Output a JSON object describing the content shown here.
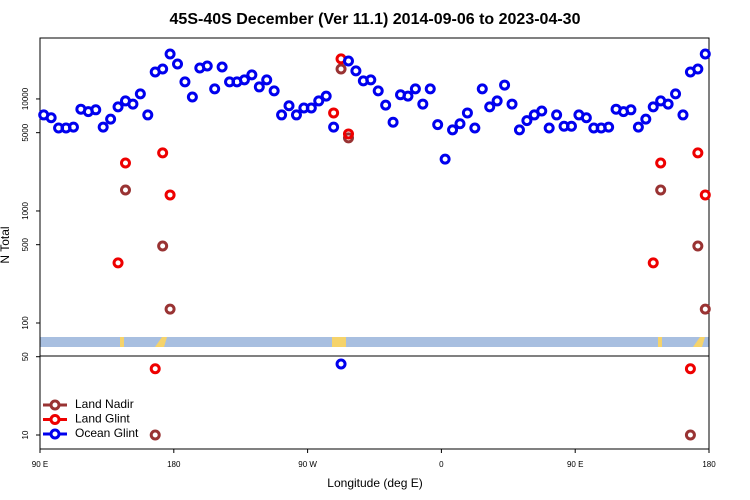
{
  "chart_data": {
    "type": "scatter",
    "title": "45S-40S December (Ver 11.1)   2014-09-06 to 2023-04-30",
    "xlabel": "Longitude (deg E)",
    "ylabel": "N Total",
    "log_y": true,
    "grid": false,
    "legend": "bottom-left",
    "xlim": [
      90,
      540
    ],
    "xticks": [
      {
        "value": 90,
        "label": "90 E"
      },
      180,
      {
        "value": 270,
        "label": "90 W"
      },
      {
        "value": 360,
        "label": "0"
      },
      {
        "value": 450,
        "label": "90 E"
      },
      {
        "value": 540,
        "label": "180"
      }
    ],
    "ylim": [
      7.5,
      35000
    ],
    "yticks": [
      10,
      50,
      100,
      500,
      1000,
      5000,
      10000
    ],
    "series": [
      {
        "name": "Land Nadir",
        "color": "#993333",
        "x": [
          147.5,
          167.5,
          172.5,
          177.5,
          292.5,
          297.5,
          507.5,
          527.5,
          532.5,
          537.5
        ],
        "values": [
          1540,
          10,
          487,
          133,
          18500,
          4490,
          1540,
          10,
          487,
          133
        ]
      },
      {
        "name": "Land Glint",
        "color": "#ee0000",
        "x": [
          142.5,
          147.5,
          167.5,
          172.5,
          177.5,
          287.5,
          292.5,
          297.5,
          502.5,
          507.5,
          527.5,
          532.5,
          537.5
        ],
        "values": [
          344,
          2680,
          39,
          3300,
          1390,
          7500,
          22800,
          4870,
          344,
          2680,
          39,
          3300,
          1390
        ]
      },
      {
        "name": "Ocean Glint",
        "color": "#0000ee",
        "x": [
          92.5,
          97.5,
          102.5,
          107.5,
          112.5,
          117.5,
          122.5,
          127.5,
          132.5,
          137.5,
          142.5,
          147.5,
          152.5,
          157.5,
          162.5,
          167.5,
          172.5,
          177.5,
          182.5,
          187.5,
          192.5,
          197.5,
          202.5,
          207.5,
          212.5,
          217.5,
          222.5,
          227.5,
          232.5,
          237.5,
          242.5,
          247.5,
          252.5,
          257.5,
          262.5,
          267.5,
          272.5,
          277.5,
          282.5,
          287.5,
          292.5,
          297.5,
          302.5,
          307.5,
          312.5,
          317.5,
          322.5,
          327.5,
          332.5,
          337.5,
          342.5,
          347.5,
          352.5,
          357.5,
          362.5,
          367.5,
          372.5,
          377.5,
          382.5,
          387.5,
          392.5,
          397.5,
          402.5,
          407.5,
          412.5,
          417.5,
          422.5,
          427.5,
          432.5,
          437.5,
          442.5,
          447.5,
          452.5,
          457.5,
          462.5,
          467.5,
          472.5,
          477.5,
          482.5,
          487.5,
          492.5,
          497.5,
          502.5,
          507.5,
          512.5,
          517.5,
          522.5,
          527.5,
          532.5,
          537.5
        ],
        "values": [
          7200,
          6800,
          5500,
          5500,
          5600,
          8100,
          7700,
          8000,
          5600,
          6600,
          8500,
          9600,
          9000,
          11100,
          7200,
          17400,
          18500,
          25200,
          20500,
          14200,
          10400,
          18900,
          19700,
          12300,
          19300,
          14200,
          14200,
          14800,
          16400,
          12800,
          14800,
          11800,
          7200,
          8700,
          7200,
          8300,
          8300,
          9600,
          10600,
          5600,
          43,
          21800,
          17800,
          14500,
          14800,
          11800,
          8800,
          6200,
          10900,
          10600,
          12300,
          9000,
          12300,
          5900,
          2900,
          5300,
          6000,
          7500,
          5500,
          12300,
          8500,
          9600,
          13300,
          9000,
          5300,
          6400,
          7200,
          7800,
          5500,
          7200,
          5700,
          5700,
          7200,
          6800,
          5500,
          5500,
          5600,
          8100,
          7700,
          8000,
          5600,
          6600,
          8500,
          9600,
          9000,
          11100,
          7200,
          17400,
          18500,
          25200
        ]
      }
    ]
  }
}
